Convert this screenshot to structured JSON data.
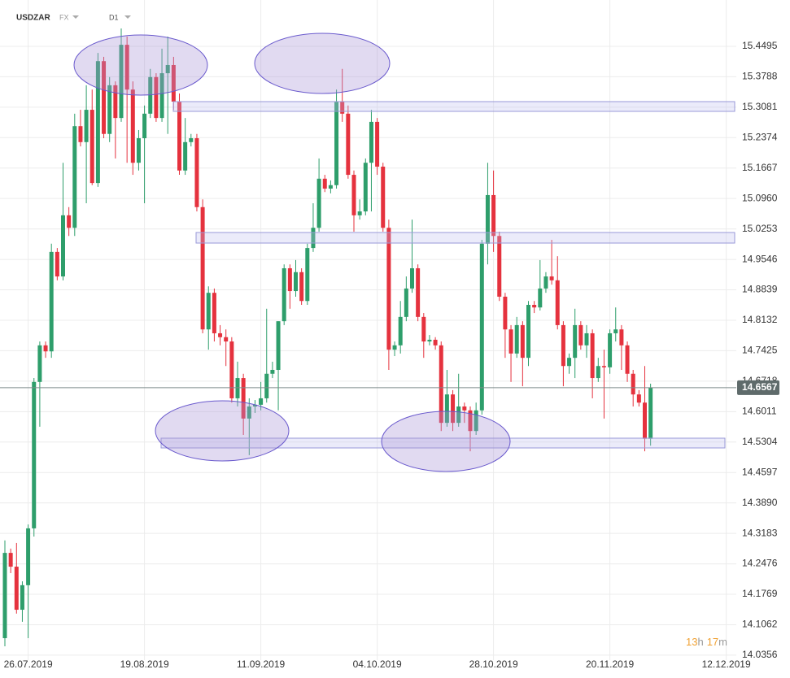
{
  "chart_data": {
    "type": "candlestick",
    "symbol": "USDZAR",
    "market": "FX",
    "interval": "D1",
    "countdown": [
      "13",
      "h",
      "17",
      "m"
    ],
    "up_color": "#2e9e6b",
    "down_color": "#e5323e",
    "grid": true,
    "ylim": [
      14.024,
      15.557
    ],
    "yticks": [
      15.4495,
      15.3788,
      15.3081,
      15.2374,
      15.1667,
      {
        "value": 15.096,
        "label": "15.0960"
      },
      15.0253,
      14.9546,
      14.8839,
      14.8132,
      14.7425,
      14.6718,
      14.6011,
      14.5304,
      14.4597,
      {
        "value": 14.389,
        "label": "14.3890"
      },
      14.3183,
      14.2476,
      14.1769,
      14.1062,
      14.0356
    ],
    "categories": [
      null,
      null,
      null,
      null,
      "26.07.2019",
      null,
      null,
      null,
      null,
      null,
      null,
      null,
      null,
      null,
      null,
      null,
      null,
      null,
      null,
      null,
      null,
      null,
      null,
      null,
      "19.08.2019",
      null,
      null,
      null,
      null,
      null,
      null,
      null,
      null,
      null,
      null,
      null,
      null,
      null,
      null,
      null,
      null,
      null,
      null,
      null,
      "11.09.2019",
      null,
      null,
      null,
      null,
      null,
      null,
      null,
      null,
      null,
      null,
      null,
      null,
      null,
      null,
      null,
      null,
      null,
      null,
      null,
      "04.10.2019",
      null,
      null,
      null,
      null,
      null,
      null,
      null,
      null,
      null,
      null,
      null,
      null,
      null,
      null,
      null,
      null,
      null,
      null,
      null,
      "28.10.2019",
      null,
      null,
      null,
      null,
      null,
      null,
      null,
      null,
      null,
      null,
      null,
      null,
      null,
      null,
      null,
      null,
      null,
      null,
      null,
      "20.11.2019",
      null,
      null,
      null,
      null,
      null,
      null,
      null,
      null,
      null,
      null,
      null,
      null,
      null,
      null,
      null,
      null,
      null,
      null,
      null,
      "12.12.2019",
      null
    ],
    "open": [
      14.075,
      14.273,
      14.241,
      14.141,
      14.198,
      14.33,
      14.67,
      14.755,
      14.741,
      14.972,
      14.915,
      15.057,
      15.028,
      15.264,
      15.227,
      15.302,
      15.132,
      15.415,
      15.246,
      15.359,
      15.283,
      15.453,
      15.349,
      15.179,
      15.236,
      15.293,
      15.378,
      15.283,
      15.387,
      15.406,
      15.321,
      15.161,
      15.227,
      15.236,
      15.076,
      14.792,
      14.877,
      14.783,
      14.774,
      14.764,
      14.632,
      14.679,
      14.585,
      14.613,
      14.617,
      14.632,
      14.689,
      14.698,
      14.811,
      14.934,
      14.881,
      14.925,
      14.858,
      14.981,
      15.028,
      15.142,
      15.119,
      15.127,
      15.321,
      15.293,
      15.151,
      15.057,
      15.066,
      15.179,
      15.274,
      15.17,
      15.028,
      14.745,
      14.755,
      14.821,
      14.887,
      14.934,
      14.821,
      14.764,
      14.768,
      14.755,
      14.575,
      14.641,
      14.575,
      14.613,
      14.604,
      14.556,
      14.604,
      14.991,
      15.104,
      15.009,
      14.868,
      14.792,
      14.736,
      14.802,
      14.726,
      14.849,
      14.843,
      14.887,
      14.915,
      14.906,
      14.802,
      14.707,
      14.726,
      14.802,
      14.755,
      14.783,
      14.679,
      14.707,
      14.704,
      14.783,
      14.792,
      14.755,
      14.689,
      14.641,
      14.622,
      14.538,
      null,
      null,
      null,
      null,
      null,
      null,
      null,
      null,
      null,
      null,
      null,
      null,
      null,
      null
    ],
    "high": [
      14.302,
      14.283,
      14.296,
      14.207,
      14.339,
      14.679,
      14.764,
      14.764,
      14.991,
      14.981,
      15.179,
      15.076,
      15.293,
      15.302,
      15.359,
      15.349,
      15.434,
      15.425,
      15.378,
      15.368,
      15.491,
      15.472,
      15.368,
      15.255,
      15.312,
      15.397,
      15.387,
      15.444,
      15.472,
      15.425,
      15.34,
      15.283,
      15.246,
      15.246,
      15.094,
      14.892,
      14.887,
      14.802,
      14.792,
      14.774,
      14.717,
      14.689,
      14.632,
      14.628,
      14.67,
      14.84,
      14.717,
      14.811,
      14.943,
      14.943,
      14.953,
      14.934,
      14.991,
      15.085,
      15.189,
      15.151,
      15.138,
      15.349,
      15.397,
      15.312,
      15.161,
      15.094,
      15.189,
      15.302,
      15.283,
      15.179,
      15.047,
      14.764,
      14.858,
      14.915,
      15.047,
      14.943,
      14.83,
      14.779,
      14.774,
      14.764,
      14.698,
      14.651,
      14.689,
      14.622,
      14.613,
      14.622,
      15.0,
      15.179,
      15.161,
      15.019,
      14.877,
      14.802,
      14.821,
      14.811,
      14.858,
      14.858,
      14.953,
      14.925,
      15.0,
      14.962,
      14.811,
      14.736,
      14.84,
      14.811,
      14.802,
      14.792,
      14.726,
      14.745,
      14.792,
      14.843,
      14.802,
      14.764,
      14.698,
      14.651,
      14.707,
      14.666,
      null,
      null,
      null,
      null,
      null,
      null,
      null,
      null,
      null,
      null,
      null,
      null,
      null,
      null
    ],
    "low": [
      14.056,
      14.226,
      14.132,
      14.113,
      14.075,
      14.311,
      14.566,
      14.726,
      14.726,
      14.906,
      14.906,
      15.009,
      15.009,
      15.217,
      15.085,
      15.127,
      15.123,
      15.236,
      15.227,
      15.189,
      15.274,
      15.179,
      15.151,
      15.161,
      15.085,
      15.283,
      15.274,
      15.274,
      15.246,
      15.302,
      15.151,
      15.151,
      15.217,
      15.066,
      14.783,
      14.745,
      14.764,
      14.755,
      14.707,
      14.622,
      14.613,
      14.547,
      14.5,
      14.598,
      14.604,
      14.622,
      14.679,
      14.604,
      14.802,
      14.84,
      14.868,
      14.849,
      14.849,
      14.972,
      15.019,
      15.111,
      15.108,
      15.119,
      15.274,
      15.142,
      15.019,
      15.047,
      15.057,
      15.066,
      15.151,
      15.019,
      14.698,
      14.73,
      14.736,
      14.811,
      14.877,
      14.811,
      14.726,
      14.755,
      14.745,
      14.556,
      14.566,
      14.556,
      14.566,
      14.575,
      14.509,
      14.547,
      14.594,
      14.943,
      14.972,
      14.858,
      14.726,
      14.67,
      14.726,
      14.66,
      14.707,
      14.83,
      14.836,
      14.877,
      14.896,
      14.792,
      14.66,
      14.689,
      14.679,
      14.745,
      14.726,
      14.632,
      14.67,
      14.585,
      14.689,
      14.764,
      14.698,
      14.67,
      14.613,
      14.613,
      14.509,
      14.522,
      null,
      null,
      null,
      null,
      null,
      null,
      null,
      null,
      null,
      null,
      null,
      null,
      null,
      null
    ],
    "close": [
      14.273,
      14.241,
      14.141,
      14.198,
      14.33,
      14.67,
      14.755,
      14.741,
      14.972,
      14.915,
      15.057,
      15.028,
      15.264,
      15.227,
      15.302,
      15.132,
      15.415,
      15.246,
      15.359,
      15.283,
      15.453,
      15.349,
      15.179,
      15.236,
      15.293,
      15.378,
      15.283,
      15.387,
      15.406,
      15.321,
      15.161,
      15.227,
      15.236,
      15.076,
      14.792,
      14.877,
      14.783,
      14.774,
      14.764,
      14.632,
      14.679,
      14.585,
      14.613,
      14.617,
      14.632,
      14.689,
      14.698,
      14.811,
      14.934,
      14.881,
      14.925,
      14.858,
      14.981,
      15.028,
      15.142,
      15.119,
      15.127,
      15.321,
      15.293,
      15.151,
      15.057,
      15.066,
      15.179,
      15.274,
      15.17,
      15.028,
      14.745,
      14.755,
      14.821,
      14.887,
      14.934,
      14.821,
      14.764,
      14.768,
      14.755,
      14.575,
      14.641,
      14.575,
      14.613,
      14.604,
      14.556,
      14.604,
      14.991,
      15.104,
      15.009,
      14.868,
      14.792,
      14.736,
      14.802,
      14.726,
      14.849,
      14.843,
      14.887,
      14.915,
      14.906,
      14.802,
      14.707,
      14.726,
      14.802,
      14.755,
      14.783,
      14.679,
      14.707,
      14.704,
      14.783,
      14.792,
      14.755,
      14.689,
      14.641,
      14.622,
      14.538,
      14.6567,
      null,
      null,
      null,
      null,
      null,
      null,
      null,
      null,
      null,
      null,
      null,
      null,
      null,
      null
    ]
  }
}
